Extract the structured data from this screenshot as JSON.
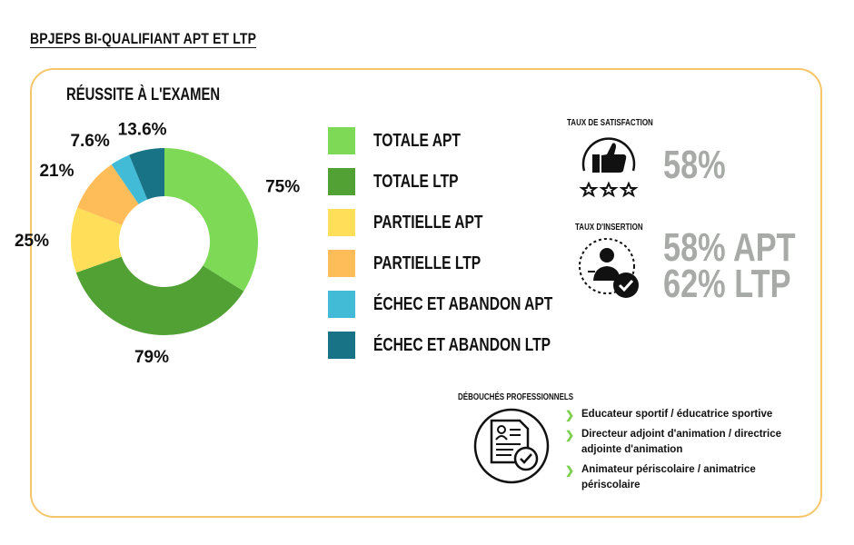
{
  "page_title": "BPJEPS BI-QUALIFIANT APT ET LTP",
  "section_title": "RÉUSSITE À L'EXAMEN",
  "chart_data": {
    "type": "pie",
    "title": "RÉUSSITE À L'EXAMEN",
    "series": [
      {
        "name": "TOTALE APT",
        "label": "75%",
        "value": 75,
        "color": "#7ed957"
      },
      {
        "name": "TOTALE LTP",
        "label": "79%",
        "value": 79,
        "color": "#52a135"
      },
      {
        "name": "PARTIELLE APT",
        "label": "25%",
        "value": 25,
        "color": "#ffde59"
      },
      {
        "name": "PARTIELLE LTP",
        "label": "21%",
        "value": 21,
        "color": "#ffbd59"
      },
      {
        "name": "ÉCHEC ET ABANDON APT",
        "label": "7.6%",
        "value": 7.6,
        "color": "#42bcd6"
      },
      {
        "name": "ÉCHEC ET ABANDON LTP",
        "label": "13.6%",
        "value": 13.6,
        "color": "#187387"
      }
    ],
    "legend_position": "right"
  },
  "satisfaction": {
    "title": "TAUX DE SATISFACTION",
    "value": "58%",
    "icon": "thumbs-up-stars-icon"
  },
  "insertion": {
    "title": "TAUX D'INSERTION",
    "value_apt": "58% APT",
    "value_ltp": "62% LTP",
    "icon": "person-check-icon"
  },
  "debouches": {
    "title": "DÉBOUCHÉS PROFESSIONNELS",
    "icon": "document-check-icon",
    "items": [
      "Educateur sportif / éducatrice sportive",
      "Directeur adjoint d'animation / directrice adjointe d'animation",
      "Animateur périscolaire / animatrice périscolaire"
    ]
  },
  "colors": {
    "card_border": "#f6c66a",
    "stat_gray": "#a7aaa7",
    "chevron": "#7ccf4c"
  }
}
